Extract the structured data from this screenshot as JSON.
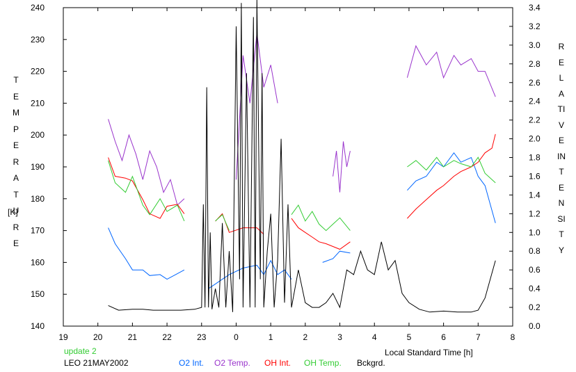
{
  "chart_data": {
    "type": "line",
    "station": "LEO 21MAY2002",
    "update_label": "update 2",
    "xlabel": "Local Standard Time [h]",
    "ylabel_left": "TEMPERATURE",
    "ylabel_left_unit": "[K]",
    "ylabel_right": "RELATIVE INTENSITY",
    "x_range_hours": [
      19,
      32
    ],
    "x_tick_labels": [
      "19",
      "20",
      "21",
      "22",
      "23",
      "0",
      "1",
      "2",
      "3",
      "4",
      "5",
      "6",
      "7",
      "8"
    ],
    "y_left_range": [
      140,
      240
    ],
    "y_left_ticks": [
      140,
      150,
      160,
      170,
      180,
      190,
      200,
      210,
      220,
      230,
      240
    ],
    "y_right_range": [
      0,
      3.4
    ],
    "y_right_ticks": [
      "0.0",
      "0.2",
      "0.4",
      "0.6",
      "0.8",
      "1.0",
      "1.2",
      "1.4",
      "1.6",
      "1.8",
      "2.0",
      "2.2",
      "2.4",
      "2.6",
      "2.8",
      "3.0",
      "3.2",
      "3.4"
    ],
    "grid": false,
    "legend_position": "bottom",
    "series": [
      {
        "name": "O2 Int.",
        "color": "#0066ff",
        "axis": "right",
        "segments": [
          {
            "x": [
              20.3,
              20.5,
              20.8,
              21.0,
              21.3,
              21.5,
              21.8,
              22.0,
              22.3,
              22.5
            ],
            "y": [
              1.05,
              0.88,
              0.72,
              0.6,
              0.6,
              0.54,
              0.55,
              0.5,
              0.56,
              0.6
            ]
          },
          {
            "x": [
              23.2,
              23.4,
              23.6,
              23.8,
              24.2,
              24.6,
              24.8,
              25.0,
              25.2,
              25.4,
              25.6
            ],
            "y": [
              0.4,
              0.45,
              0.5,
              0.55,
              0.62,
              0.65,
              0.55,
              0.7,
              0.55,
              0.6,
              0.5
            ]
          },
          {
            "x": [
              26.5,
              26.8,
              27.0,
              27.3
            ],
            "y": [
              0.68,
              0.72,
              0.8,
              0.78
            ]
          },
          {
            "x": [
              28.95,
              29.2,
              29.5,
              29.8,
              30.0,
              30.3,
              30.5,
              30.8,
              31.0,
              31.2,
              31.5
            ],
            "y": [
              1.45,
              1.55,
              1.6,
              1.75,
              1.7,
              1.85,
              1.75,
              1.8,
              1.6,
              1.5,
              1.1
            ]
          }
        ]
      },
      {
        "name": "O2 Temp.",
        "color": "#9933cc",
        "axis": "left",
        "segments": [
          {
            "x": [
              20.3,
              20.5,
              20.7,
              20.9,
              21.1,
              21.3,
              21.5,
              21.7,
              21.9,
              22.1,
              22.3,
              22.5
            ],
            "y": [
              205,
              198,
              192,
              200,
              194,
              186,
              195,
              190,
              182,
              186,
              178,
              180
            ]
          },
          {
            "x": [
              24.0,
              24.2,
              24.4,
              24.6,
              24.8,
              25.0,
              25.2
            ],
            "y": [
              186,
              225,
              210,
              232,
              215,
              222,
              210
            ]
          },
          {
            "x": [
              26.8,
              26.9,
              27.0,
              27.1,
              27.2,
              27.3
            ],
            "y": [
              187,
              195,
              182,
              198,
              190,
              195
            ]
          },
          {
            "x": [
              28.95,
              29.2,
              29.5,
              29.8,
              30.0,
              30.3,
              30.5,
              30.8,
              31.0,
              31.2,
              31.5
            ],
            "y": [
              218,
              228,
              222,
              226,
              218,
              225,
              222,
              224,
              220,
              220,
              212
            ]
          }
        ]
      },
      {
        "name": "OH Int.",
        "color": "#ff0000",
        "axis": "right",
        "segments": [
          {
            "x": [
              20.3,
              20.5,
              20.8,
              21.0,
              21.3,
              21.5,
              21.8,
              22.0,
              22.3,
              22.5
            ],
            "y": [
              1.8,
              1.6,
              1.58,
              1.55,
              1.35,
              1.2,
              1.15,
              1.28,
              1.3,
              1.2
            ]
          },
          {
            "x": [
              23.4,
              23.6,
              23.8,
              24.2,
              24.6,
              24.8
            ],
            "y": [
              1.12,
              1.2,
              1.0,
              1.05,
              1.05,
              0.98
            ]
          },
          {
            "x": [
              25.6,
              25.8,
              26.0,
              26.2,
              26.4,
              26.6,
              26.8,
              27.0,
              27.3
            ],
            "y": [
              1.15,
              1.05,
              1.0,
              0.95,
              0.9,
              0.88,
              0.85,
              0.82,
              0.9
            ]
          },
          {
            "x": [
              28.95,
              29.2,
              29.5,
              29.8,
              30.0,
              30.3,
              30.5,
              30.8,
              31.0,
              31.2,
              31.4,
              31.5
            ],
            "y": [
              1.15,
              1.25,
              1.35,
              1.45,
              1.5,
              1.6,
              1.65,
              1.7,
              1.75,
              1.85,
              1.9,
              2.05
            ]
          }
        ]
      },
      {
        "name": "OH Temp.",
        "color": "#33cc33",
        "axis": "left",
        "segments": [
          {
            "x": [
              20.3,
              20.5,
              20.8,
              21.0,
              21.3,
              21.5,
              21.8,
              22.0,
              22.3,
              22.5
            ],
            "y": [
              192,
              185,
              182,
              187,
              178,
              175,
              180,
              176,
              178,
              173
            ]
          },
          {
            "x": [
              23.4,
              23.6,
              23.8
            ],
            "y": [
              173,
              175,
              170
            ]
          },
          {
            "x": [
              25.6,
              25.8,
              26.0,
              26.2,
              26.4,
              26.6,
              26.8,
              27.0,
              27.3
            ],
            "y": [
              175,
              178,
              173,
              176,
              172,
              170,
              172,
              174,
              170
            ]
          },
          {
            "x": [
              28.95,
              29.2,
              29.5,
              29.8,
              30.0,
              30.3,
              30.5,
              30.8,
              31.0,
              31.2,
              31.5
            ],
            "y": [
              190,
              192,
              189,
              193,
              190,
              192,
              191,
              190,
              193,
              188,
              185
            ]
          }
        ]
      },
      {
        "name": "Bckgrd.",
        "color": "#000000",
        "axis": "right",
        "segments": [
          {
            "x": [
              20.3,
              20.6,
              21.0,
              21.3,
              21.6,
              22.0,
              22.4,
              22.8,
              23.0,
              23.05,
              23.1,
              23.15,
              23.2,
              23.25,
              23.3,
              23.4,
              23.5,
              23.6,
              23.7,
              23.8,
              23.9,
              24.0,
              24.1,
              24.15,
              24.2,
              24.3,
              24.4,
              24.5,
              24.55,
              24.6,
              24.7,
              24.75,
              24.8,
              24.9,
              25.0,
              25.1,
              25.2,
              25.3,
              25.4,
              25.5,
              25.6,
              25.8,
              26.0,
              26.2,
              26.4,
              26.6,
              26.8,
              27.0,
              27.2,
              27.4,
              27.6,
              27.8,
              28.0,
              28.2,
              28.4,
              28.6,
              28.8,
              29.0,
              29.3,
              29.6,
              30.0,
              30.4,
              30.8,
              31.0,
              31.2,
              31.35,
              31.5
            ],
            "y": [
              0.22,
              0.17,
              0.18,
              0.18,
              0.17,
              0.17,
              0.17,
              0.18,
              0.2,
              1.3,
              0.2,
              2.55,
              0.2,
              1.0,
              0.18,
              0.4,
              0.2,
              1.1,
              0.2,
              0.8,
              0.15,
              3.2,
              0.5,
              3.45,
              0.2,
              2.7,
              0.2,
              3.3,
              0.2,
              3.5,
              0.5,
              2.7,
              0.2,
              0.8,
              1.2,
              0.2,
              0.7,
              2.0,
              0.25,
              1.3,
              0.2,
              0.6,
              0.25,
              0.2,
              0.2,
              0.25,
              0.35,
              0.2,
              0.6,
              0.55,
              0.8,
              0.6,
              0.55,
              0.9,
              0.6,
              0.7,
              0.35,
              0.25,
              0.18,
              0.15,
              0.16,
              0.15,
              0.15,
              0.17,
              0.3,
              0.5,
              0.7
            ]
          }
        ]
      }
    ]
  }
}
